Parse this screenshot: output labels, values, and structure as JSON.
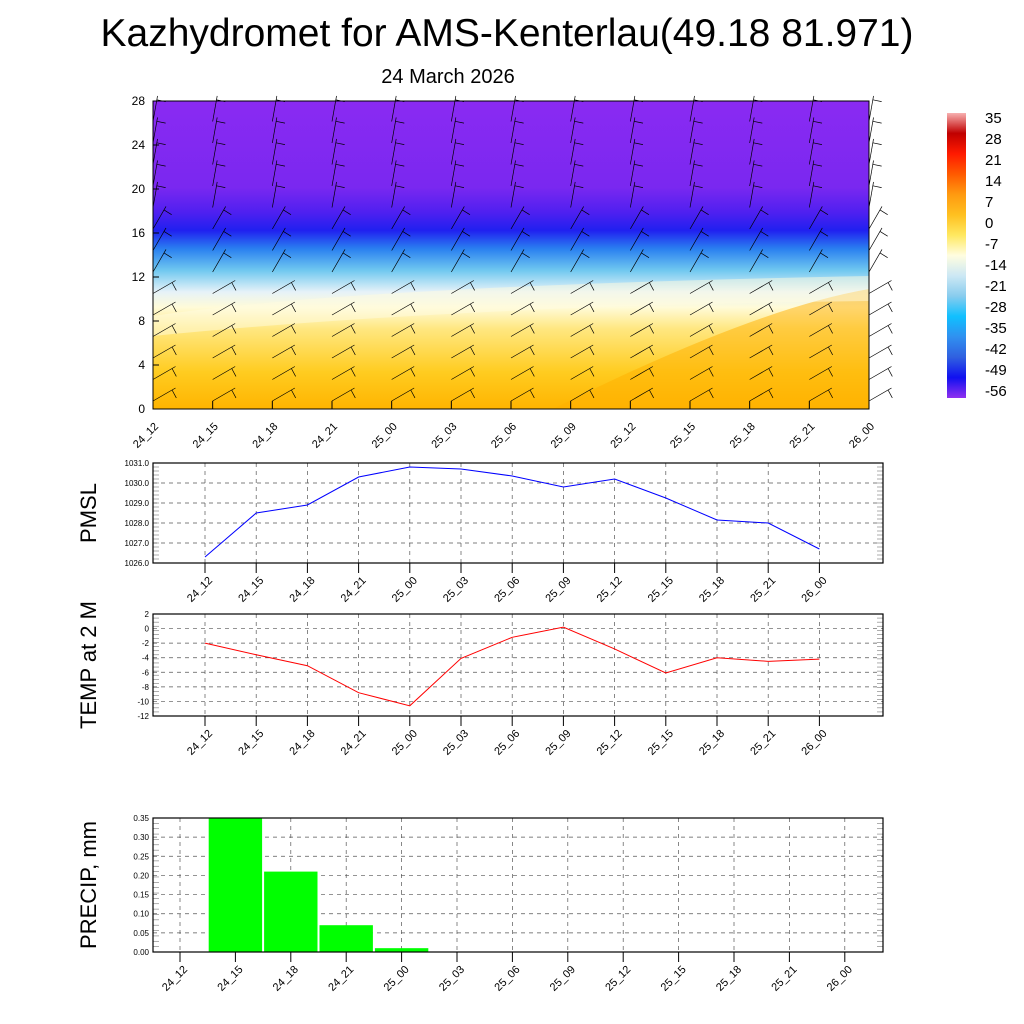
{
  "title": "Kazhydromet for AMS-Kenterlau(49.18 81.971)",
  "subtitle": "24 March 2026",
  "colorbar": {
    "labels": [
      "35",
      "28",
      "21",
      "14",
      "7",
      "0",
      "-7",
      "-14",
      "-21",
      "-28",
      "-35",
      "-42",
      "-49",
      "-56"
    ],
    "colors": [
      "#f7b0b0",
      "#c00000",
      "#ff1a00",
      "#ff5a00",
      "#ff9a10",
      "#ffc020",
      "#ffe860",
      "#fffde0",
      "#cce8f4",
      "#88ccee",
      "#10c0ff",
      "#3090f0",
      "#3060e0",
      "#1010f0",
      "#9030f0"
    ]
  },
  "chart_data": [
    {
      "type": "heatmap",
      "title": "",
      "ylabel": "",
      "ylim": [
        0,
        28
      ],
      "yticks": [
        "0",
        "4",
        "8",
        "12",
        "16",
        "20",
        "24",
        "28"
      ],
      "categories": [
        "24_12",
        "24_15",
        "24_18",
        "24_21",
        "25_00",
        "25_03",
        "25_06",
        "25_09",
        "25_12",
        "25_15",
        "25_18",
        "25_21",
        "26_00"
      ],
      "description_levels": [
        {
          "level_range": [
            0,
            10
          ],
          "value_approx": 0
        },
        {
          "level_range": [
            10,
            14
          ],
          "value_approx": -14
        },
        {
          "level_range": [
            14,
            19
          ],
          "value_approx": -40
        },
        {
          "level_range": [
            19,
            28
          ],
          "value_approx": -56
        }
      ]
    },
    {
      "type": "line",
      "ylabel": "PMSL",
      "ylim": [
        1026.0,
        1031.0
      ],
      "yticks": [
        "1026.0",
        "1027.0",
        "1028.0",
        "1029.0",
        "1030.0",
        "1031.0"
      ],
      "categories": [
        "24_12",
        "24_15",
        "24_18",
        "24_21",
        "25_00",
        "25_03",
        "25_06",
        "25_09",
        "25_12",
        "25_15",
        "25_18",
        "25_21",
        "26_00"
      ],
      "series": [
        {
          "name": "PMSL",
          "color": "#0000ff",
          "values": [
            1026.3,
            1028.5,
            1028.9,
            1030.3,
            1030.8,
            1030.7,
            1030.35,
            1029.8,
            1030.2,
            1029.25,
            1028.15,
            1028.0,
            1026.7
          ]
        }
      ]
    },
    {
      "type": "line",
      "ylabel": "TEMP at 2 M",
      "ylim": [
        -12,
        2
      ],
      "yticks": [
        "-12",
        "-10",
        "-8",
        "-6",
        "-4",
        "-2",
        "0",
        "2"
      ],
      "categories": [
        "24_12",
        "24_15",
        "24_18",
        "24_21",
        "25_00",
        "25_03",
        "25_06",
        "25_09",
        "25_12",
        "25_15",
        "25_18",
        "25_21",
        "26_00"
      ],
      "series": [
        {
          "name": "TEMP",
          "color": "#ff0000",
          "values": [
            -2.0,
            -3.6,
            -5.1,
            -8.8,
            -10.6,
            -4.1,
            -1.2,
            0.2,
            -2.8,
            -6.1,
            -4.0,
            -4.5,
            -4.2
          ]
        }
      ]
    },
    {
      "type": "bar",
      "ylabel": "PRECIP, mm",
      "ylim": [
        0,
        0.35
      ],
      "yticks": [
        "0.00",
        "0.05",
        "0.10",
        "0.15",
        "0.20",
        "0.25",
        "0.30",
        "0.35"
      ],
      "categories": [
        "24_12",
        "24_15",
        "24_18",
        "24_21",
        "25_00",
        "25_03",
        "25_06",
        "25_09",
        "25_12",
        "25_15",
        "25_18",
        "25_21",
        "26_00"
      ],
      "series": [
        {
          "name": "PRECIP",
          "color": "#00ff00",
          "values": [
            0,
            0.35,
            0.21,
            0.07,
            0.01,
            0,
            0,
            0,
            0,
            0,
            0,
            0,
            0
          ]
        }
      ]
    }
  ]
}
